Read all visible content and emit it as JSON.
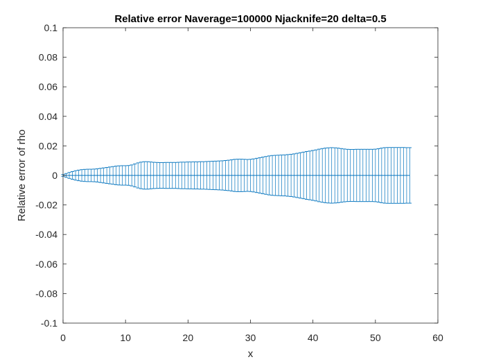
{
  "chart_data": {
    "type": "errorbar",
    "title": "Relative error Naverage=100000 Njacknife=20 delta=0.5",
    "xlabel": "x",
    "ylabel": "Relative error of rho",
    "xlim": [
      0,
      60
    ],
    "ylim": [
      -0.1,
      0.1
    ],
    "xticks": [
      "0",
      "10",
      "20",
      "30",
      "40",
      "50",
      "60"
    ],
    "yticks": [
      "-0.1",
      "-0.08",
      "-0.06",
      "-0.04",
      "-0.02",
      "0",
      "0.02",
      "0.04",
      "0.06",
      "0.08",
      "0.1"
    ],
    "box": true,
    "grid": false,
    "series": [
      {
        "color": "#0072bd",
        "x": [
          0,
          0.5,
          1,
          1.5,
          2,
          2.5,
          3,
          3.5,
          4,
          4.5,
          5,
          5.5,
          6,
          6.5,
          7,
          7.5,
          8,
          8.5,
          9,
          9.5,
          10,
          10.5,
          11,
          11.5,
          12,
          12.5,
          13,
          13.5,
          14,
          14.5,
          15,
          15.5,
          16,
          16.5,
          17,
          17.5,
          18,
          18.5,
          19,
          19.5,
          20,
          20.5,
          21,
          21.5,
          22,
          22.5,
          23,
          23.5,
          24,
          24.5,
          25,
          25.5,
          26,
          26.5,
          27,
          27.5,
          28,
          28.5,
          29,
          29.5,
          30,
          30.5,
          31,
          31.5,
          32,
          32.5,
          33,
          33.5,
          34,
          34.5,
          35,
          35.5,
          36,
          36.5,
          37,
          37.5,
          38,
          38.5,
          39,
          39.5,
          40,
          40.5,
          41,
          41.5,
          42,
          42.5,
          43,
          43.5,
          44,
          44.5,
          45,
          45.5,
          46,
          46.5,
          47,
          47.5,
          48,
          48.5,
          49,
          49.5,
          50,
          50.5,
          51,
          51.5,
          52,
          52.5,
          53,
          53.5,
          54,
          54.5,
          55,
          55.5
        ],
        "y": [
          0,
          0,
          0,
          0,
          0,
          0,
          0,
          0,
          0,
          0,
          0,
          0,
          0,
          0,
          0,
          0,
          0,
          0,
          0,
          0,
          0,
          0,
          0,
          0,
          0,
          0,
          0,
          0,
          0,
          0,
          0,
          0,
          0,
          0,
          0,
          0,
          0,
          0,
          0,
          0,
          0,
          0,
          0,
          0,
          0,
          0,
          0,
          0,
          0,
          0,
          0,
          0,
          0,
          0,
          0,
          0,
          0,
          0,
          0,
          0,
          0,
          0,
          0,
          0,
          0,
          0,
          0,
          0,
          0,
          0,
          0,
          0,
          0,
          0,
          0,
          0,
          0,
          0,
          0,
          0,
          0,
          0,
          0,
          0,
          0,
          0,
          0,
          0,
          0,
          0,
          0,
          0,
          0,
          0,
          0,
          0,
          0,
          0,
          0,
          0,
          0,
          0,
          0,
          0,
          0,
          0,
          0,
          0,
          0,
          0,
          0,
          0
        ],
        "error": [
          0.0006,
          0.0013,
          0.002,
          0.0026,
          0.0032,
          0.0036,
          0.0039,
          0.0041,
          0.0042,
          0.0042,
          0.0043,
          0.0045,
          0.0048,
          0.0051,
          0.0054,
          0.0057,
          0.006,
          0.0063,
          0.0065,
          0.0066,
          0.0066,
          0.0067,
          0.0071,
          0.0078,
          0.0085,
          0.009,
          0.0093,
          0.0093,
          0.0091,
          0.0089,
          0.0088,
          0.0087,
          0.0087,
          0.0088,
          0.0088,
          0.0088,
          0.0088,
          0.0089,
          0.009,
          0.009,
          0.0091,
          0.0091,
          0.0092,
          0.0092,
          0.0093,
          0.0093,
          0.0094,
          0.0095,
          0.0096,
          0.0097,
          0.0098,
          0.0099,
          0.0101,
          0.0103,
          0.0106,
          0.0109,
          0.011,
          0.011,
          0.0109,
          0.0108,
          0.0109,
          0.0112,
          0.0116,
          0.012,
          0.0124,
          0.0128,
          0.0132,
          0.0135,
          0.0136,
          0.0137,
          0.0138,
          0.0139,
          0.0141,
          0.0143,
          0.0146,
          0.015,
          0.0154,
          0.0158,
          0.0162,
          0.0165,
          0.0169,
          0.0173,
          0.0178,
          0.0182,
          0.0185,
          0.0187,
          0.0188,
          0.0187,
          0.0185,
          0.0182,
          0.0179,
          0.0177,
          0.0176,
          0.0176,
          0.0177,
          0.0177,
          0.0177,
          0.0177,
          0.0177,
          0.0177,
          0.0178,
          0.0181,
          0.0185,
          0.0188,
          0.0189,
          0.0189,
          0.0189,
          0.0189,
          0.0189,
          0.0189,
          0.0188,
          0.0188
        ]
      }
    ]
  }
}
